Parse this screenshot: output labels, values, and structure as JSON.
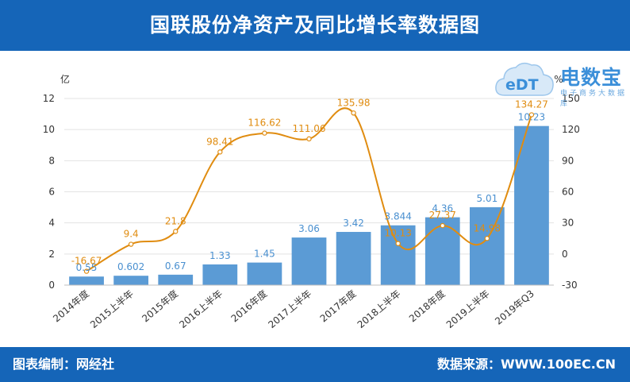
{
  "header": {
    "title": "国联股份净资产及同比增长率数据图"
  },
  "footer": {
    "left": "图表编制：网经社",
    "right": "数据来源：WWW.100EC.CN"
  },
  "logo": {
    "brand": "电数宝",
    "sub": "电子商务大数据库",
    "mark": "eDT"
  },
  "chart_data": {
    "type": "bar+line",
    "categories": [
      "2014年度",
      "2015上半年",
      "2015年度",
      "2016上半年",
      "2016年度",
      "2017上半年",
      "2017年度",
      "2018上半年",
      "2018年度",
      "2019上半年",
      "2019年Q3"
    ],
    "bar_labels": [
      "0.55",
      "0.602",
      "0.67",
      "1.33",
      "1.45",
      "3.06",
      "3.42",
      "3.844",
      "4.36",
      "5.01",
      "10.23"
    ],
    "line_labels": [
      "-16.67",
      "9.4",
      "21.8",
      "98.41",
      "116.62",
      "111.06",
      "135.98",
      "10.13",
      "27.37",
      "14.98",
      "134.27"
    ],
    "series": [
      {
        "type": "bar",
        "axis": "left",
        "color": "#5b9bd5",
        "values": [
          0.55,
          0.602,
          0.67,
          1.33,
          1.45,
          3.06,
          3.42,
          3.844,
          4.36,
          5.01,
          10.23
        ]
      },
      {
        "type": "line",
        "axis": "right",
        "color": "#e08c10",
        "values": [
          -16.67,
          9.4,
          21.8,
          98.41,
          116.62,
          111.06,
          135.98,
          10.13,
          27.37,
          14.98,
          134.27
        ]
      }
    ],
    "y_left": {
      "unit": "亿",
      "min": 0,
      "max": 12,
      "ticks": [
        "0",
        "2",
        "4",
        "6",
        "8",
        "10",
        "12"
      ]
    },
    "y_right": {
      "unit": "%",
      "min": -30,
      "max": 150,
      "ticks": [
        "-30",
        "0",
        "30",
        "60",
        "90",
        "120",
        "150"
      ]
    },
    "grid": true
  }
}
